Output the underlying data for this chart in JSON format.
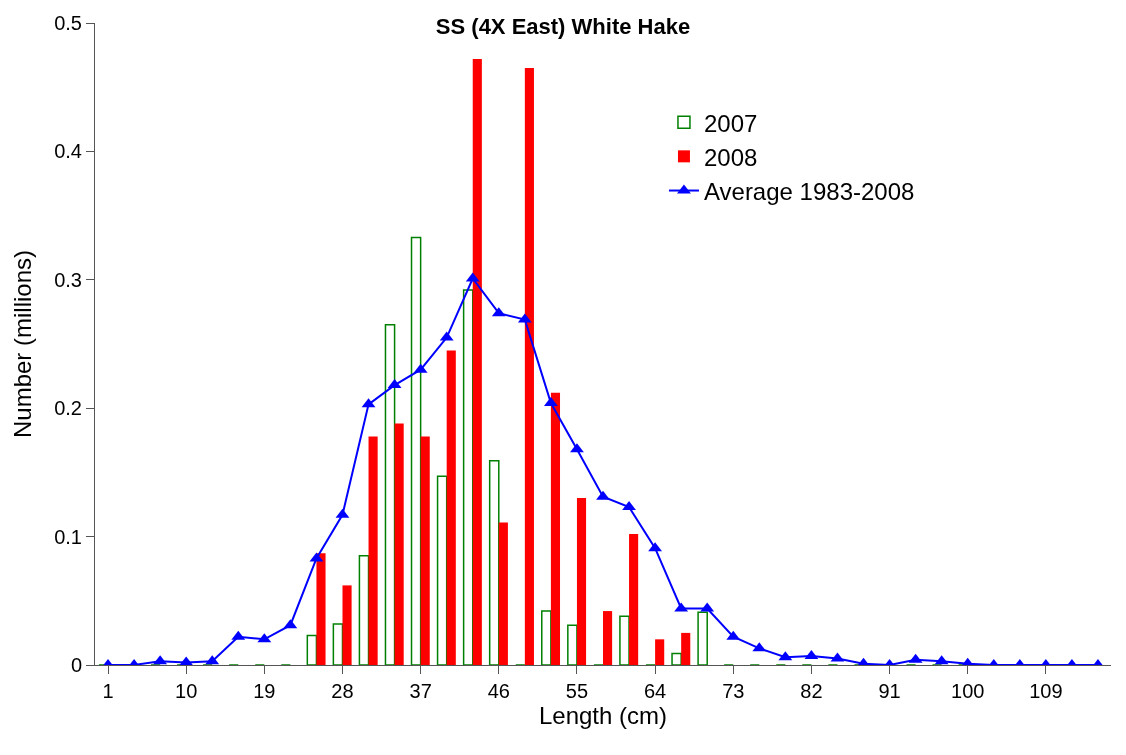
{
  "chart_data": {
    "type": "bar",
    "title": "SS (4X East) White Hake",
    "xlabel": "Length (cm)",
    "ylabel": "Number (millions)",
    "categories": [
      "1",
      null,
      null,
      "10",
      null,
      null,
      "19",
      null,
      null,
      "28",
      null,
      null,
      "37",
      null,
      null,
      "46",
      null,
      null,
      "55",
      null,
      null,
      "64",
      null,
      null,
      "73",
      null,
      null,
      "82",
      null,
      null,
      "91",
      null,
      null,
      "100",
      null,
      null,
      "109",
      null,
      null
    ],
    "series": [
      {
        "name": "2007",
        "color": "#008000",
        "values": [
          0,
          0,
          0,
          0,
          0,
          0,
          0,
          0,
          0.023,
          0.032,
          0.085,
          0.265,
          0.333,
          0.147,
          0.292,
          0.159,
          0,
          0.042,
          0.031,
          0,
          0.038,
          0,
          0.009,
          0.041,
          0,
          0,
          0,
          0,
          0,
          0,
          0,
          0,
          0,
          0,
          0,
          0,
          0,
          0,
          0
        ]
      },
      {
        "name": "2008",
        "color": "#ff0000",
        "values": [
          0,
          0,
          0,
          0,
          0,
          0,
          0,
          0,
          0.087,
          0.062,
          0.178,
          0.188,
          0.178,
          0.245,
          0.472,
          0.111,
          0.465,
          0.212,
          0.13,
          0.042,
          0.102,
          0.02,
          0.025,
          0,
          0,
          0,
          0,
          0,
          0,
          0,
          0,
          0,
          0,
          0,
          0,
          0,
          0,
          0,
          0
        ]
      },
      {
        "name": "Average 1983-2008",
        "type": "line",
        "color": "#0000ff",
        "marker": "triangle",
        "values": [
          0,
          0,
          0.003,
          0.002,
          0.003,
          0.022,
          0.02,
          0.031,
          0.083,
          0.117,
          0.203,
          0.218,
          0.23,
          0.255,
          0.301,
          0.274,
          0.269,
          0.204,
          0.168,
          0.131,
          0.123,
          0.091,
          0.044,
          0.044,
          0.022,
          0.013,
          0.006,
          0.007,
          0.005,
          0.001,
          0,
          0.004,
          0.003,
          0.001,
          0,
          0,
          0,
          0,
          0
        ]
      }
    ],
    "ylim": [
      0,
      0.5
    ],
    "yticks": [
      0,
      0.1,
      0.2,
      0.3,
      0.4,
      0.5
    ],
    "legend": "top right"
  }
}
